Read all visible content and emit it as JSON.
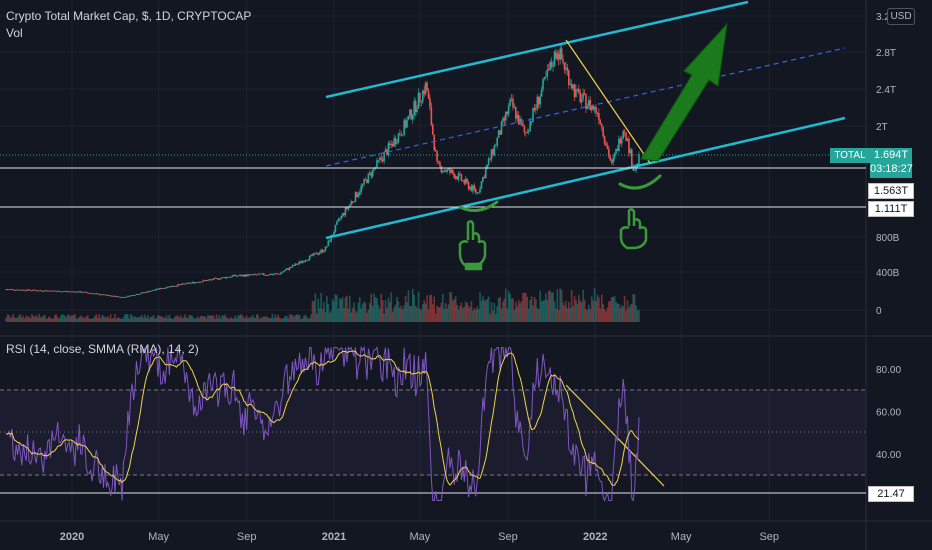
{
  "header": {
    "title": "Crypto Total Market Cap, $, 1D, CRYPTOCAP",
    "volume_label": "Vol",
    "rsi_label": "RSI (14, close, SMMA (RMA), 14, 2)"
  },
  "currency_button": "USD",
  "price_badge": {
    "ticker": "TOTAL",
    "price": "1.694T",
    "countdown": "03:18:27"
  },
  "level_badges": {
    "upper": "1.563T",
    "lower": "1.111T",
    "rsi": "21.47"
  },
  "colors": {
    "background": "#131722",
    "channel": "#22b8cf",
    "midline": "#2962ff",
    "up_candle": "#26a69a",
    "down_candle": "#ef5350",
    "arrow": "#1b7a1b",
    "hand": "#3a9a3a",
    "trendline": "#f0d24a",
    "rsi_line": "#7e57c2",
    "rsi_ma": "#f0d24a"
  },
  "icons": [
    "hand-pointing-up-icon",
    "hand-pointing-up-icon"
  ],
  "chart_data": [
    {
      "type": "candlestick",
      "name": "price",
      "y_ticks": [
        "3.2T",
        "2.8T",
        "2.4T",
        "2T",
        "800B",
        "400B",
        "0"
      ],
      "x_ticks": [
        "2020",
        "May",
        "Sep",
        "2021",
        "May",
        "Sep",
        "2022",
        "May",
        "Sep"
      ],
      "horizontal_levels": [
        1.563,
        1.111
      ],
      "current_price": 1.694,
      "trend_keypoints": {
        "x": [
          "2019-10-01",
          "2020-01-15",
          "2020-03-12",
          "2020-05-15",
          "2020-08-15",
          "2020-10-15",
          "2020-12-20",
          "2021-01-08",
          "2021-02-20",
          "2021-04-10",
          "2021-05-10",
          "2021-05-25",
          "2021-06-20",
          "2021-07-20",
          "2021-09-05",
          "2021-09-25",
          "2021-11-09",
          "2021-12-05",
          "2022-01-05",
          "2022-01-24",
          "2022-02-10",
          "2022-02-24",
          "2022-03-04"
        ],
        "y": [
          0.23,
          0.2,
          0.14,
          0.26,
          0.38,
          0.4,
          0.68,
          1.0,
          1.5,
          2.05,
          2.5,
          1.6,
          1.5,
          1.3,
          2.3,
          1.95,
          2.9,
          2.4,
          2.2,
          1.6,
          2.05,
          1.55,
          1.69
        ]
      }
    },
    {
      "type": "bar",
      "name": "volume",
      "description": "daily trading volume, low until late 2020, elevated through 2021"
    },
    {
      "type": "line",
      "name": "RSI",
      "y_ticks": [
        "80.00",
        "60.00",
        "40.00"
      ],
      "levels": [
        70,
        50,
        30
      ],
      "current_label": "21.47",
      "ylim": [
        15,
        95
      ]
    }
  ]
}
